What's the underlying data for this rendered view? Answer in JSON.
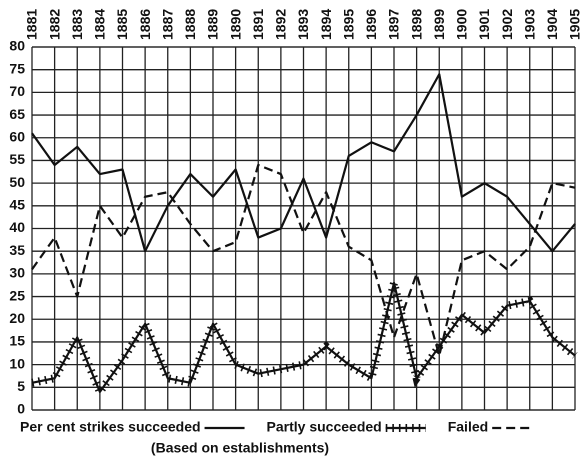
{
  "chart_data": {
    "type": "line",
    "categories": [
      "1881",
      "1882",
      "1883",
      "1884",
      "1885",
      "1886",
      "1887",
      "1888",
      "1889",
      "1890",
      "1891",
      "1892",
      "1893",
      "1894",
      "1895",
      "1896",
      "1897",
      "1898",
      "1899",
      "1900",
      "1901",
      "1902",
      "1903",
      "1904",
      "1905"
    ],
    "series": [
      {
        "name": "Per cent strikes succeeded",
        "color": "#111111",
        "style": "solid",
        "values": [
          61,
          54,
          58,
          52,
          53,
          35,
          45,
          52,
          47,
          53,
          38,
          40,
          51,
          38,
          56,
          59,
          57,
          65,
          74,
          47,
          50,
          47,
          41,
          35,
          41
        ]
      },
      {
        "name": "Partly succeeded",
        "color": "#111111",
        "style": "crossed",
        "values": [
          6,
          7,
          16,
          4,
          11,
          19,
          7,
          6,
          19,
          10,
          8,
          9,
          10,
          14,
          10,
          7,
          28,
          7,
          14,
          21,
          17,
          23,
          24,
          16,
          12
        ]
      },
      {
        "name": "Failed",
        "color": "#111111",
        "style": "dashed",
        "values": [
          31,
          38,
          25,
          45,
          38,
          47,
          48,
          41,
          35,
          37,
          54,
          52,
          39,
          48,
          36,
          33,
          16,
          30,
          12,
          33,
          35,
          31,
          36,
          50,
          49
        ]
      }
    ],
    "caption": "(Based on establishments)",
    "ylim": [
      0,
      80
    ],
    "yticks": [
      0,
      5,
      10,
      15,
      20,
      25,
      30,
      35,
      40,
      45,
      50,
      55,
      60,
      65,
      70,
      75,
      80
    ],
    "grid": true
  }
}
